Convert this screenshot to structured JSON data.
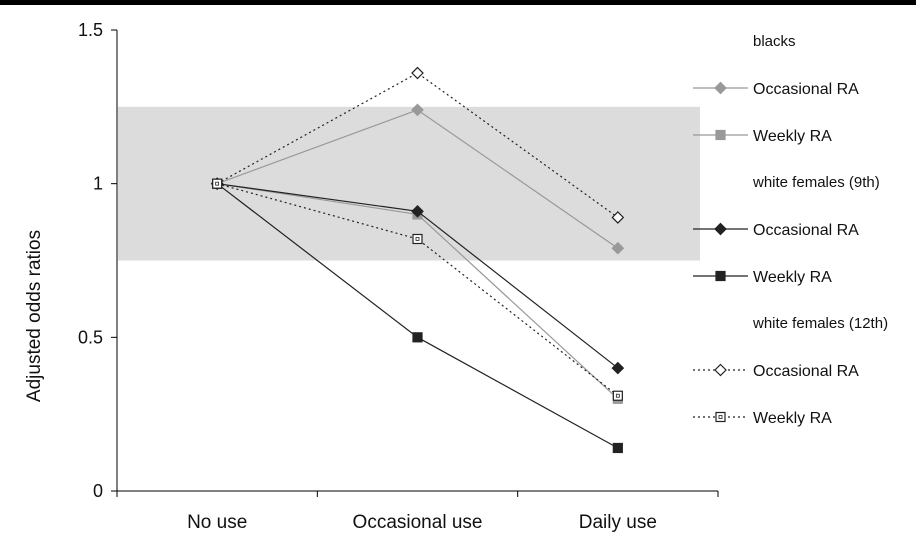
{
  "chart_data": {
    "type": "line",
    "title": "",
    "xlabel": "",
    "ylabel": "Adjusted odds ratios",
    "categories": [
      "No use",
      "Occasional use",
      "Daily use"
    ],
    "ylim": [
      0,
      1.5
    ],
    "yticks": [
      0,
      0.5,
      1,
      1.5
    ],
    "ytick_labels": [
      "0",
      "0.5",
      "1",
      "1.5"
    ],
    "grid": false,
    "shaded_band": {
      "y_from": 0.75,
      "y_to": 1.25,
      "color": "#dcdcdc"
    },
    "legend_position": "right",
    "legend_groups": [
      {
        "header": "blacks",
        "series_indices": [
          0,
          1
        ]
      },
      {
        "header": "white females (9th)",
        "series_indices": [
          2,
          3
        ]
      },
      {
        "header": "white females  (12th)",
        "series_indices": [
          4,
          5
        ]
      }
    ],
    "series": [
      {
        "name": "Occasional RA",
        "values": [
          1.0,
          1.24,
          0.79
        ],
        "color": "#999999",
        "marker": "diamond",
        "filled": true,
        "dash": false
      },
      {
        "name": "Weekly RA",
        "values": [
          1.0,
          0.9,
          0.3
        ],
        "color": "#999999",
        "marker": "square",
        "filled": true,
        "dash": false
      },
      {
        "name": "Occasional RA",
        "values": [
          1.0,
          0.91,
          0.4
        ],
        "color": "#222222",
        "marker": "diamond",
        "filled": true,
        "dash": false
      },
      {
        "name": "Weekly RA",
        "values": [
          1.0,
          0.5,
          0.14
        ],
        "color": "#222222",
        "marker": "square",
        "filled": true,
        "dash": false
      },
      {
        "name": "Occasional RA",
        "values": [
          1.0,
          1.36,
          0.89
        ],
        "color": "#222222",
        "marker": "diamond",
        "filled": false,
        "dash": true
      },
      {
        "name": "Weekly RA",
        "values": [
          1.0,
          0.82,
          0.31
        ],
        "color": "#222222",
        "marker": "square",
        "filled": false,
        "dash": true
      }
    ]
  }
}
